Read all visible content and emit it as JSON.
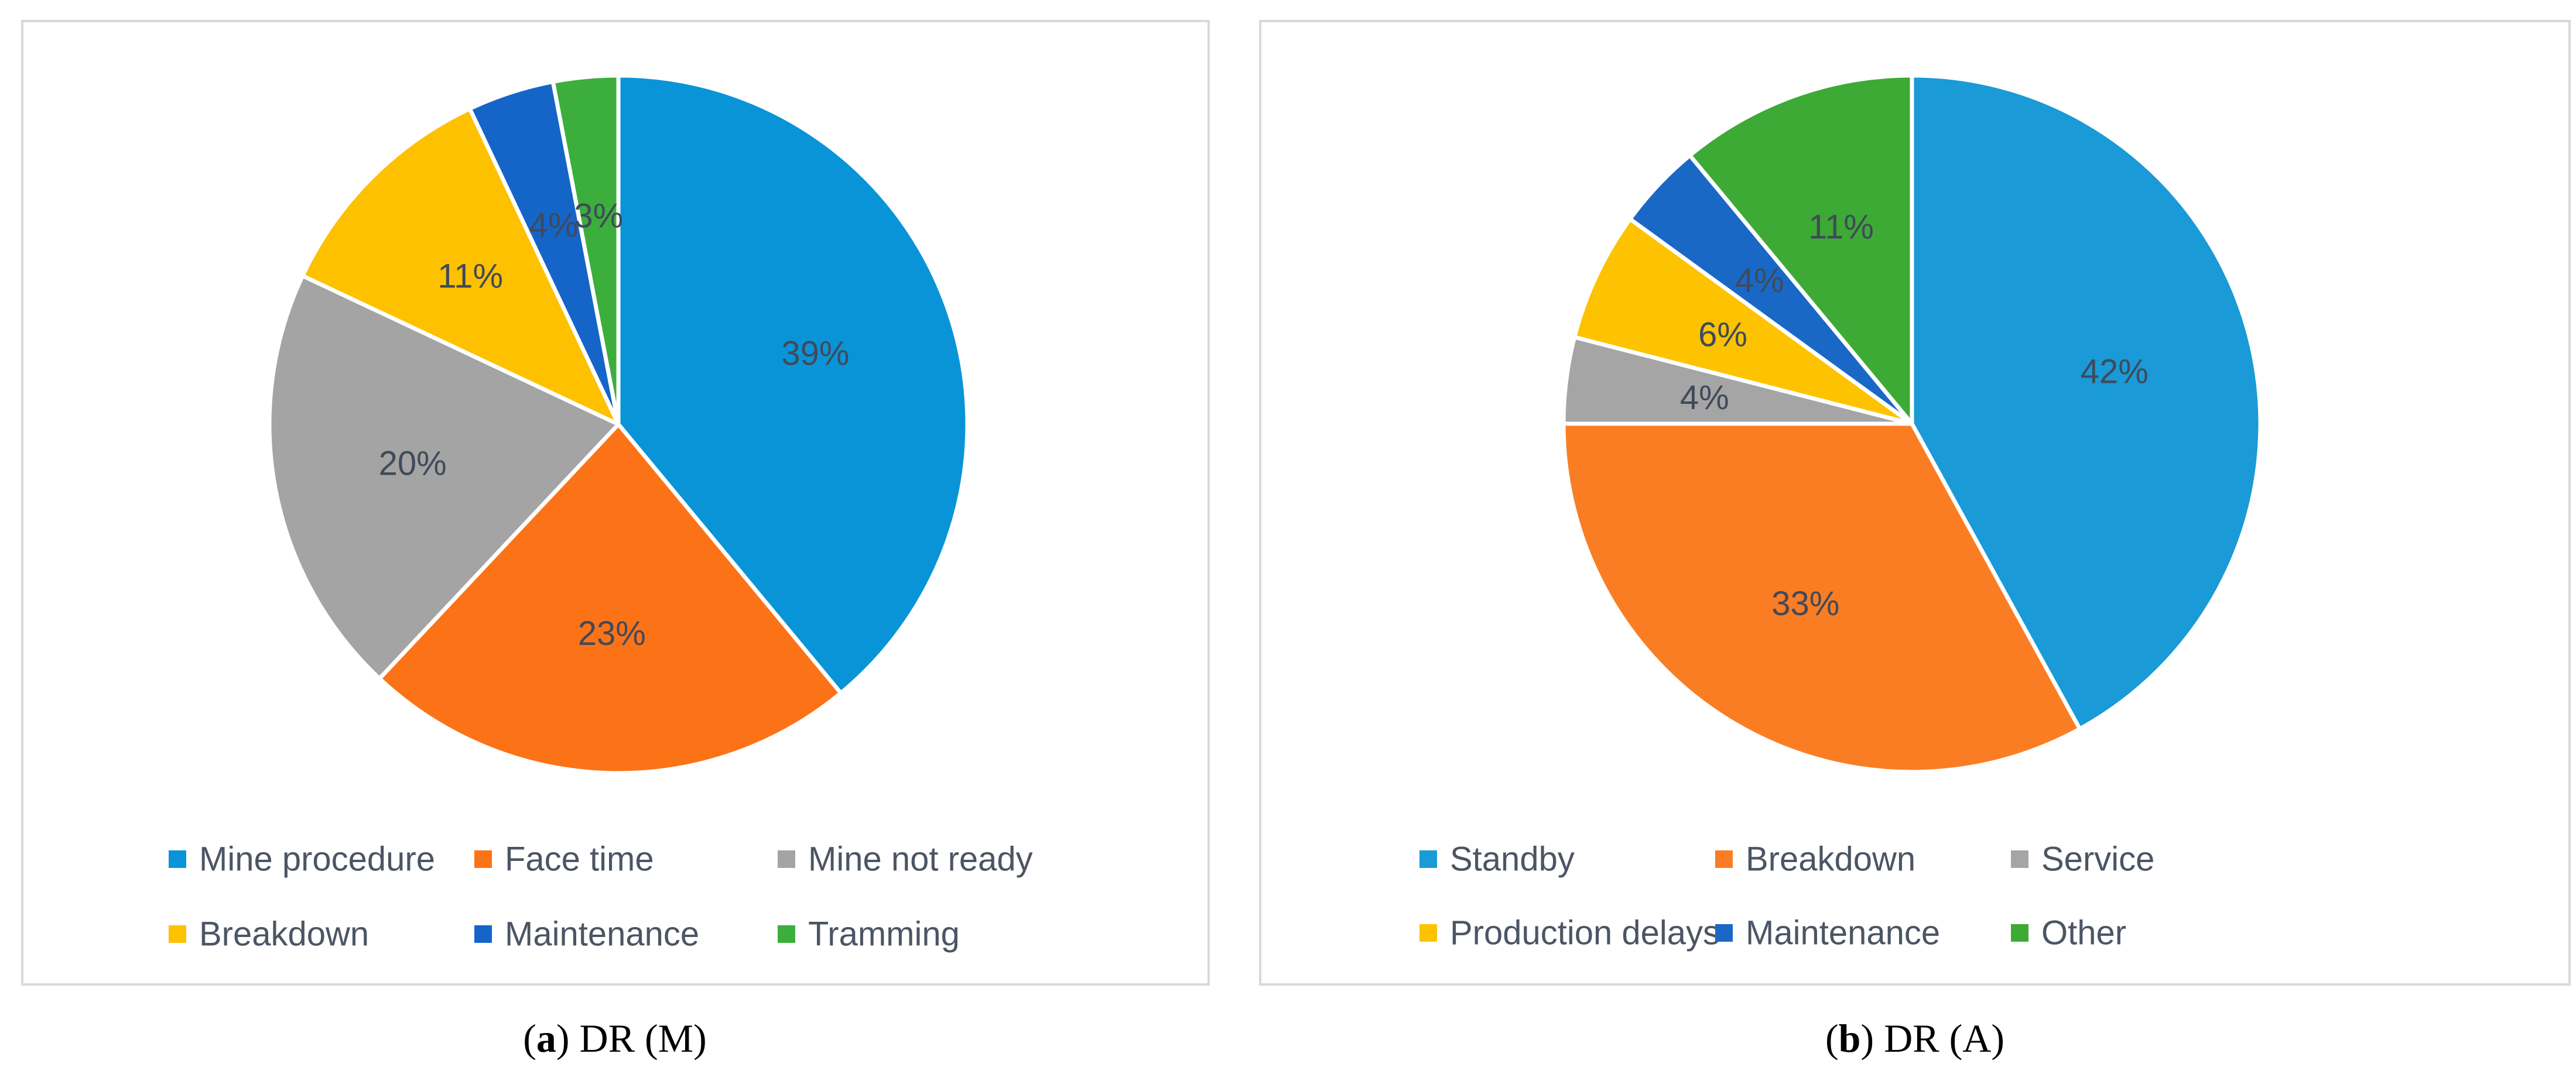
{
  "chart_data": [
    {
      "type": "pie",
      "caption_letter": "a",
      "caption_text": ") DR (M)",
      "caption_open": "(",
      "slices": [
        {
          "name": "Mine procedure",
          "value": 39,
          "label": "39%",
          "color": "#0a94d8"
        },
        {
          "name": "Face time",
          "value": 23,
          "label": "23%",
          "color": "#fc7317"
        },
        {
          "name": "Mine not ready",
          "value": 20,
          "label": "20%",
          "color": "#a4a4a4"
        },
        {
          "name": "Breakdown",
          "value": 11,
          "label": "11%",
          "color": "#fdc100"
        },
        {
          "name": "Maintenance",
          "value": 4,
          "label": "4%",
          "color": "#1565c8"
        },
        {
          "name": "Tramming",
          "value": 3,
          "label": "3%",
          "color": "#3cae3c"
        }
      ],
      "legend": [
        "Mine procedure",
        "Face time",
        "Mine not ready",
        "Breakdown",
        "Maintenance",
        "Tramming"
      ],
      "legend_position": "bottom"
    },
    {
      "type": "pie",
      "caption_letter": "b",
      "caption_text": ") DR (A)",
      "caption_open": "(",
      "slices": [
        {
          "name": "Standby",
          "value": 42,
          "label": "42%",
          "color": "#1a9ad6"
        },
        {
          "name": "Breakdown",
          "value": 33,
          "label": "33%",
          "color": "#fb7d23"
        },
        {
          "name": "Service",
          "value": 4,
          "label": "4%",
          "color": "#a5a5a5"
        },
        {
          "name": "Production delays",
          "value": 6,
          "label": "6%",
          "color": "#fdc300"
        },
        {
          "name": "Maintenance",
          "value": 4,
          "label": "4%",
          "color": "#1a68c6"
        },
        {
          "name": "Other",
          "value": 11,
          "label": "11%",
          "color": "#3daa35"
        }
      ],
      "legend": [
        "Standby",
        "Breakdown",
        "Service",
        "Production delays",
        "Maintenance",
        "Other"
      ],
      "legend_position": "bottom"
    }
  ]
}
